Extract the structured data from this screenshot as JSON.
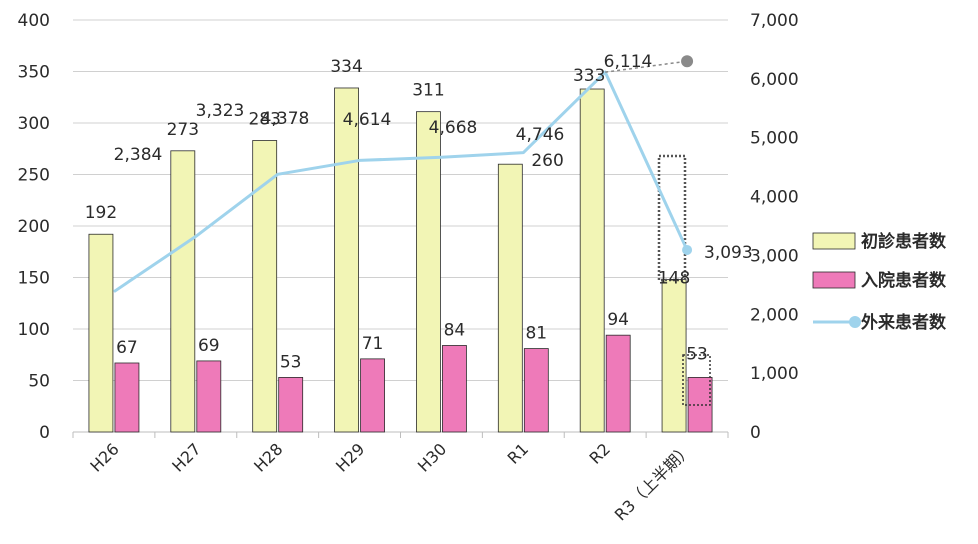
{
  "chart_data": {
    "type": "bar",
    "categories": [
      "H26",
      "H27",
      "H28",
      "H29",
      "H30",
      "R1",
      "R2",
      "R3（上半期）"
    ],
    "series": [
      {
        "name": "初診患者数",
        "type": "bar",
        "axis": "left",
        "color": "#f2f5b5",
        "values": [
          192,
          273,
          283,
          334,
          311,
          260,
          333,
          148
        ],
        "labels": [
          "192",
          "273",
          "283",
          "334",
          "311",
          "260",
          "333",
          "148"
        ]
      },
      {
        "name": "入院患者数",
        "type": "bar",
        "axis": "left",
        "color": "#ee7ab9",
        "values": [
          67,
          69,
          53,
          71,
          84,
          81,
          94,
          53
        ],
        "labels": [
          "67",
          "69",
          "53",
          "71",
          "84",
          "81",
          "94",
          "53"
        ]
      },
      {
        "name": "外来患者数",
        "type": "line",
        "axis": "right",
        "color": "#9fd3ec",
        "values": [
          2384,
          3323,
          4378,
          4614,
          4668,
          4746,
          6114,
          3093
        ],
        "labels": [
          "2,384",
          "3,323",
          "4,378",
          "4,614",
          "4,668",
          "4,746",
          "6,114",
          "3,093"
        ]
      }
    ],
    "projection": {
      "value": 6300,
      "color": "#8a8a8a"
    },
    "y_left": {
      "range": [
        0,
        400
      ],
      "ticks": [
        "0",
        "50",
        "100",
        "150",
        "200",
        "250",
        "300",
        "350",
        "400"
      ]
    },
    "y_right": {
      "range": [
        0,
        7000
      ],
      "ticks": [
        "0",
        "1,000",
        "2,000",
        "3,000",
        "4,000",
        "5,000",
        "6,000",
        "7,000"
      ]
    },
    "grid": true,
    "legend_position": "right"
  }
}
